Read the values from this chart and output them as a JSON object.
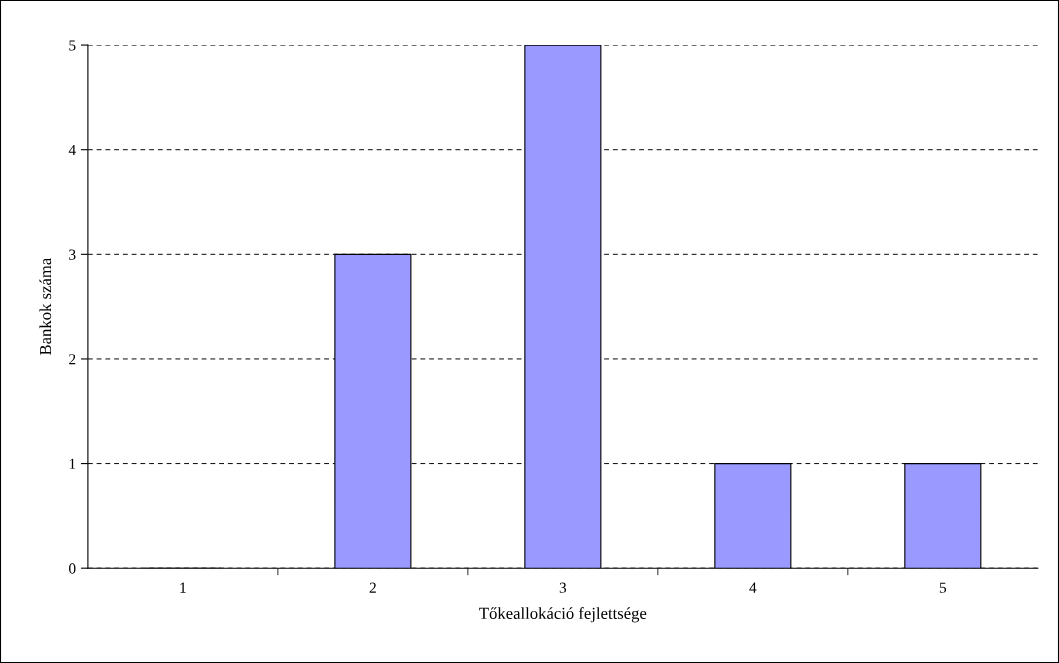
{
  "chart_data": {
    "type": "bar",
    "xlabel": "Tőkeallokáció fejlettsége",
    "ylabel": "Bankok száma",
    "categories": [
      "1",
      "2",
      "3",
      "4",
      "5"
    ],
    "values": [
      0,
      3,
      5,
      1,
      1
    ],
    "color": "#9999ff",
    "ylim": [
      0,
      5
    ],
    "yticks": [
      0,
      1,
      2,
      3,
      4,
      5
    ],
    "grid": "y"
  }
}
